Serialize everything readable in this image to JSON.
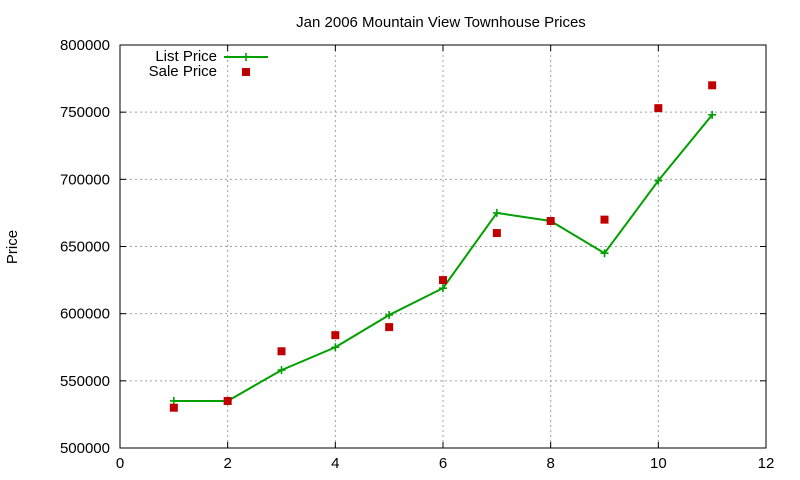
{
  "chart_data": {
    "type": "line",
    "title": "Jan 2006 Mountain View Townhouse Prices",
    "xlabel": "",
    "ylabel": "Price",
    "xlim": [
      0,
      12
    ],
    "ylim": [
      500000,
      800000
    ],
    "xticks": [
      0,
      2,
      4,
      6,
      8,
      10,
      12
    ],
    "yticks": [
      500000,
      550000,
      600000,
      650000,
      700000,
      750000,
      800000
    ],
    "grid": true,
    "legend_position": "top-left",
    "series": [
      {
        "name": "List Price",
        "style": "line+cross",
        "color": "#00a000",
        "x": [
          1,
          2,
          3,
          4,
          5,
          6,
          7,
          8,
          9,
          10,
          11
        ],
        "y": [
          535000,
          535000,
          558000,
          575000,
          599000,
          619000,
          675000,
          669000,
          645000,
          699000,
          748000
        ]
      },
      {
        "name": "Sale Price",
        "style": "square",
        "color": "#c00000",
        "x": [
          1,
          2,
          3,
          4,
          5,
          6,
          7,
          8,
          9,
          10,
          11
        ],
        "y": [
          530000,
          535000,
          572000,
          584000,
          590000,
          625000,
          660000,
          669000,
          670000,
          753000,
          770000
        ]
      }
    ]
  }
}
